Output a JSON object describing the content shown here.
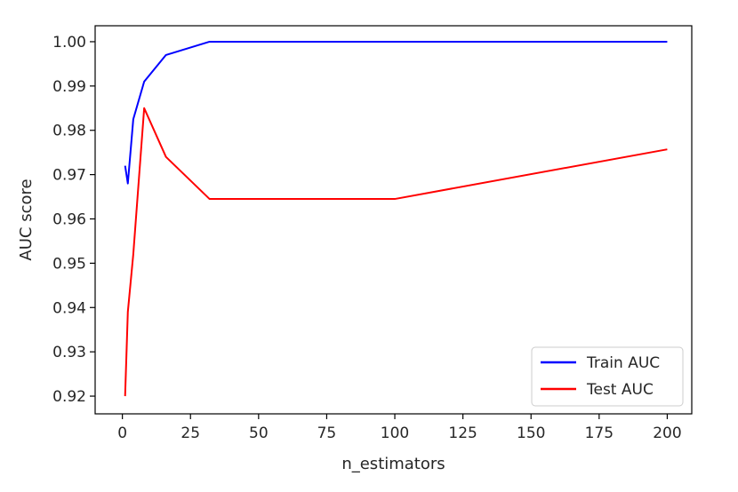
{
  "chart_data": {
    "type": "line",
    "xlabel": "n_estimators",
    "ylabel": "AUC score",
    "xlim": [
      -10,
      209
    ],
    "ylim": [
      0.916,
      1.0036
    ],
    "xticks": [
      0,
      25,
      50,
      75,
      100,
      125,
      150,
      175,
      200
    ],
    "xtick_labels": [
      "0",
      "25",
      "50",
      "75",
      "100",
      "125",
      "150",
      "175",
      "200"
    ],
    "yticks": [
      0.92,
      0.93,
      0.94,
      0.95,
      0.96,
      0.97,
      0.98,
      0.99,
      1.0
    ],
    "ytick_labels": [
      "0.92",
      "0.93",
      "0.94",
      "0.95",
      "0.96",
      "0.97",
      "0.98",
      "0.99",
      "1.00"
    ],
    "grid": false,
    "legend_position": "lower-right",
    "series": [
      {
        "name": "Train AUC",
        "color": "#0000ff",
        "x": [
          1,
          2,
          4,
          8,
          16,
          32,
          100,
          200
        ],
        "y": [
          0.972,
          0.968,
          0.9825,
          0.991,
          0.997,
          1.0,
          1.0,
          1.0
        ]
      },
      {
        "name": "Test AUC",
        "color": "#ff0000",
        "x": [
          1,
          2,
          4,
          8,
          16,
          32,
          100,
          200
        ],
        "y": [
          0.92,
          0.939,
          0.952,
          0.985,
          0.974,
          0.9645,
          0.9645,
          0.9757
        ]
      }
    ]
  }
}
